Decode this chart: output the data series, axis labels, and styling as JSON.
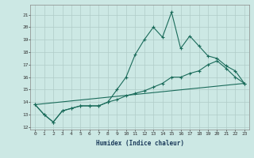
{
  "title": "",
  "xlabel": "Humidex (Indice chaleur)",
  "bg_color": "#cce8e4",
  "grid_color": "#b0ccc8",
  "line_color": "#1a6b5a",
  "xlim": [
    -0.5,
    23.5
  ],
  "ylim": [
    11.8,
    21.8
  ],
  "yticks": [
    12,
    13,
    14,
    15,
    16,
    17,
    18,
    19,
    20,
    21
  ],
  "xticks": [
    0,
    1,
    2,
    3,
    4,
    5,
    6,
    7,
    8,
    9,
    10,
    11,
    12,
    13,
    14,
    15,
    16,
    17,
    18,
    19,
    20,
    21,
    22,
    23
  ],
  "series1_x": [
    0,
    1,
    2,
    3,
    4,
    5,
    6,
    7,
    8,
    9,
    10,
    11,
    12,
    13,
    14,
    15,
    16,
    17,
    18,
    19,
    20,
    21,
    22,
    23
  ],
  "series1_y": [
    13.8,
    13.0,
    12.4,
    13.3,
    13.5,
    13.7,
    13.7,
    13.7,
    14.0,
    15.0,
    16.0,
    17.8,
    19.0,
    20.0,
    19.2,
    21.2,
    18.3,
    19.3,
    18.5,
    17.7,
    17.5,
    16.9,
    16.5,
    15.5
  ],
  "series2_x": [
    0,
    1,
    2,
    3,
    4,
    5,
    6,
    7,
    8,
    9,
    10,
    11,
    12,
    13,
    14,
    15,
    16,
    17,
    18,
    19,
    20,
    21,
    22,
    23
  ],
  "series2_y": [
    13.8,
    13.0,
    12.4,
    13.3,
    13.5,
    13.7,
    13.7,
    13.7,
    14.0,
    14.2,
    14.5,
    14.7,
    14.9,
    15.2,
    15.5,
    16.0,
    16.0,
    16.3,
    16.5,
    17.0,
    17.3,
    16.7,
    16.0,
    15.5
  ],
  "series3_x": [
    0,
    23
  ],
  "series3_y": [
    13.8,
    15.5
  ]
}
